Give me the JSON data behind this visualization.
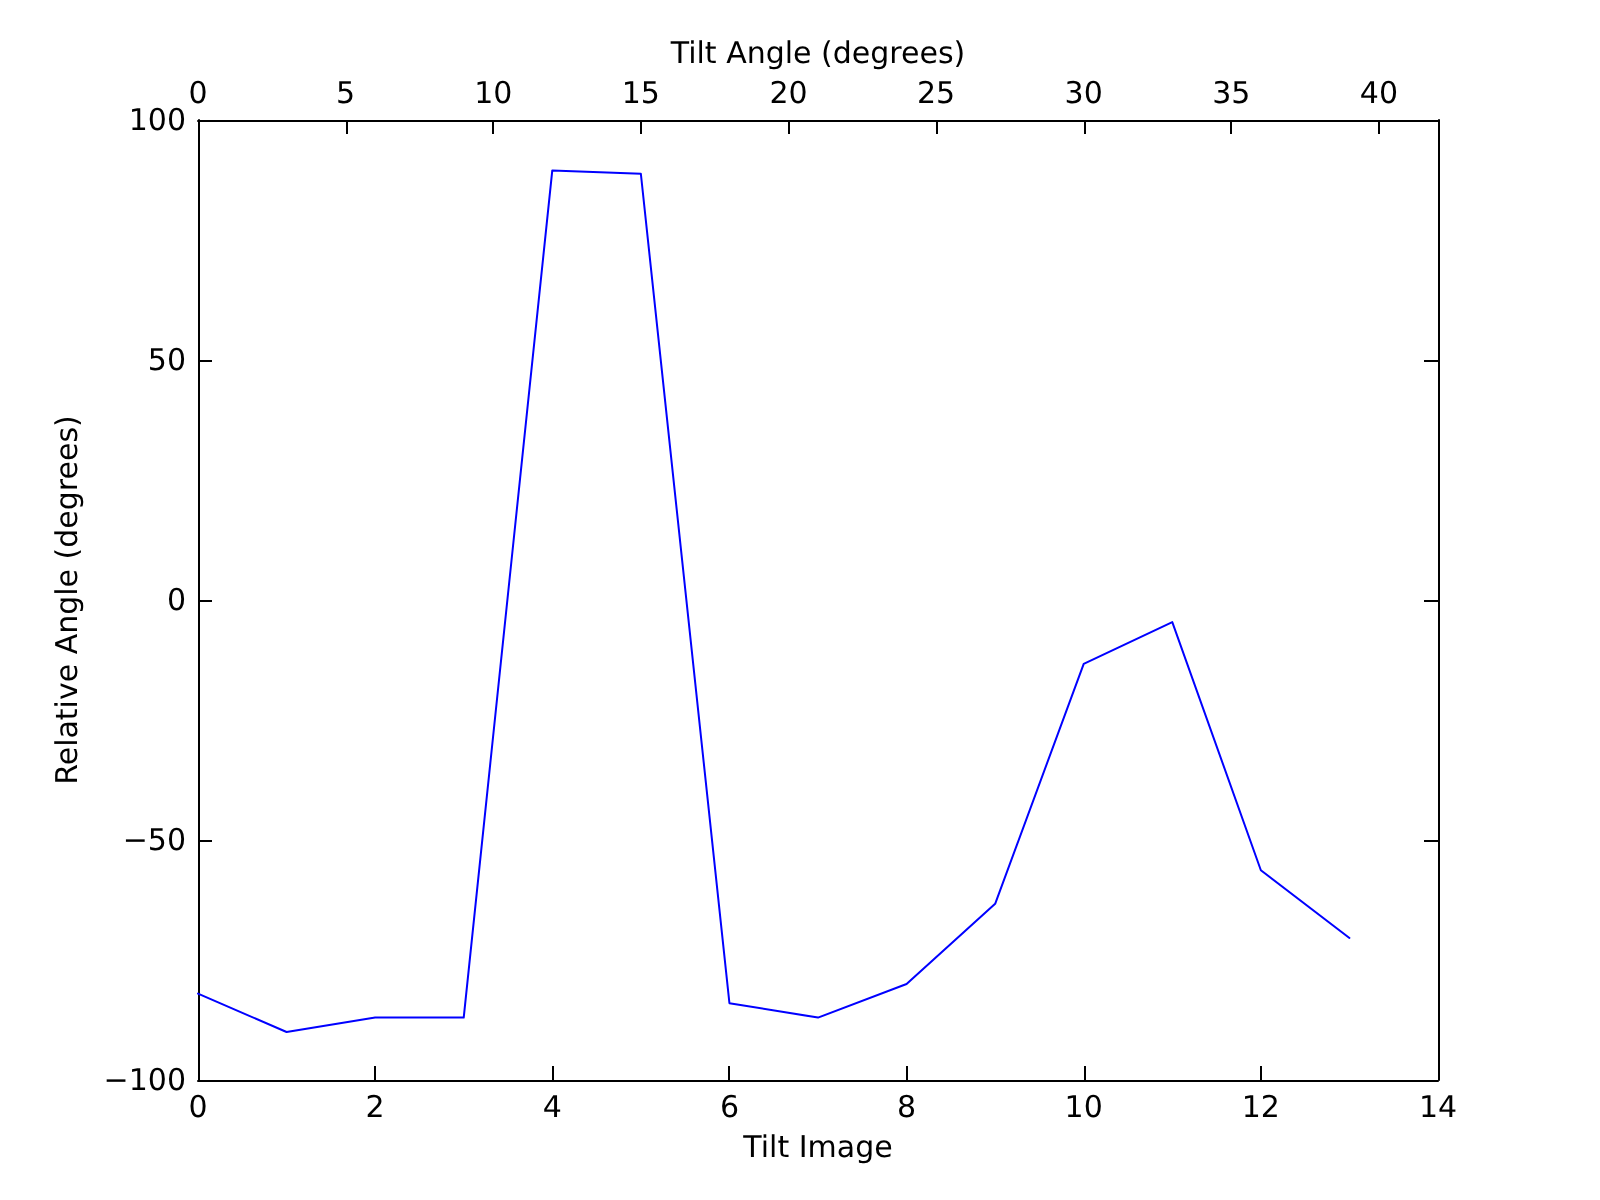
{
  "chart_data": {
    "type": "line",
    "xlabel": "Tilt Image",
    "ylabel": "Relative Angle (degrees)",
    "x2label": "Tilt Angle (degrees)",
    "x": [
      0,
      1,
      2,
      3,
      4,
      5,
      6,
      7,
      8,
      9,
      10,
      11,
      12,
      13
    ],
    "series": [
      {
        "color": "#0000ff",
        "values": [
          -82,
          -90,
          -87,
          -87,
          89.5,
          88.8,
          -84,
          -87,
          -80,
          -63.3,
          -13.3,
          -4.6,
          -56.3,
          -70.4
        ]
      }
    ],
    "xlim": [
      0,
      14
    ],
    "xticks": [
      0,
      2,
      4,
      6,
      8,
      10,
      12,
      14
    ],
    "x2lim": [
      0,
      42
    ],
    "x2ticks": [
      0,
      5,
      10,
      15,
      20,
      25,
      30,
      35,
      40
    ],
    "ylim": [
      -100,
      100
    ],
    "yticks": [
      {
        "value": -100,
        "label": "−100"
      },
      {
        "value": -50,
        "label": "−50"
      },
      0,
      50,
      100
    ],
    "grid": false,
    "marker": "none",
    "line_style": "solid"
  }
}
